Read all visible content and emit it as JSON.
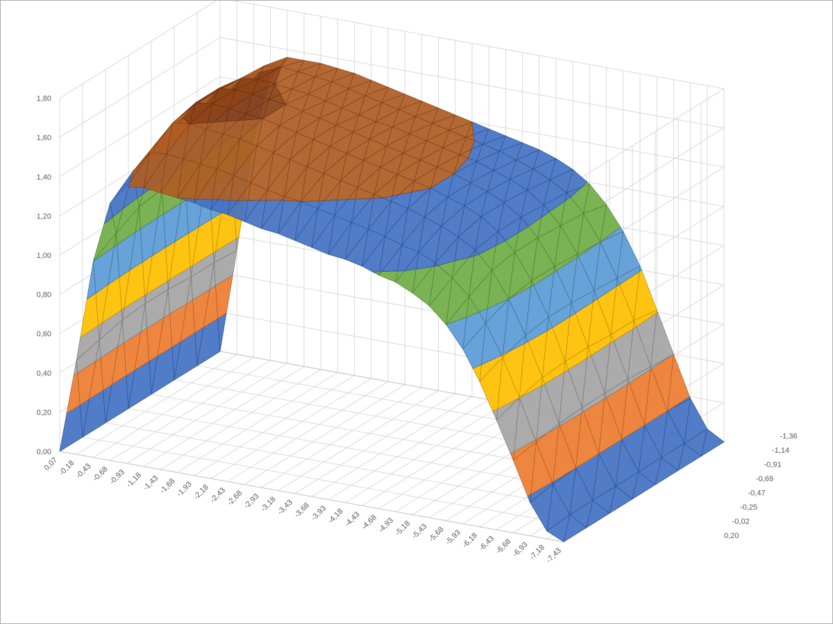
{
  "frame": {
    "background": "#FFFFFF",
    "border_color": "#ABABAB"
  },
  "axes": {
    "text_color": "#595959",
    "grid_color": "#D9D9D9",
    "edge_color": "#C6C6C6"
  },
  "chart_data": {
    "type": "surface",
    "title": "",
    "legend": "none",
    "locale_decimal_separator": ",",
    "z_axis": {
      "min": 0.0,
      "max": 1.8,
      "tick_step": 0.2,
      "tick_labels": [
        "0,00",
        "0,20",
        "0,40",
        "0,60",
        "0,80",
        "1,00",
        "1,20",
        "1,40",
        "1,60",
        "1,80"
      ]
    },
    "x_axis": {
      "start": 0.07,
      "step": -0.25,
      "tick_labels": [
        "0,07",
        "-0,18",
        "-0,43",
        "-0,68",
        "-0,93",
        "-1,18",
        "-1,43",
        "-1,68",
        "-1,93",
        "-2,18",
        "-2,43",
        "-2,68",
        "-2,93",
        "-3,18",
        "-3,43",
        "-3,68",
        "-3,93",
        "-4,18",
        "-4,43",
        "-4,68",
        "-4,93",
        "-5,18",
        "-5,43",
        "-5,68",
        "-5,93",
        "-6,18",
        "-6,43",
        "-6,68",
        "-6,93",
        "-7,18",
        "-7,43"
      ]
    },
    "y_axis": {
      "start": 0.2,
      "step": -0.2229,
      "tick_labels": [
        "0,20",
        "-0,02",
        "-0,25",
        "-0,47",
        "-0,69",
        "-0,91",
        "-1,14",
        "-1,36"
      ]
    },
    "bands": [
      {
        "range": "0,00-0,20",
        "color": "#4472C4"
      },
      {
        "range": "0,20-0,40",
        "color": "#ED7D31"
      },
      {
        "range": "0,40-0,60",
        "color": "#A5A5A5"
      },
      {
        "range": "0,60-0,80",
        "color": "#FFC000"
      },
      {
        "range": "0,80-1,00",
        "color": "#5B9BD5"
      },
      {
        "range": "1,00-1,20",
        "color": "#70AD47"
      },
      {
        "range": "1,20-1,40",
        "color": "#4472C4"
      },
      {
        "range": "1,40-1,60",
        "color": "#AE5D24"
      },
      {
        "range": "1,60-1,80",
        "color": "#8C4117"
      }
    ],
    "z_values_rows_front_to_back": [
      [
        0,
        0.48,
        1,
        1.31,
        1.41,
        1.42,
        1.41,
        1.4,
        1.39,
        1.37,
        1.36,
        1.34,
        1.32,
        1.31,
        1.29,
        1.27,
        1.25,
        1.24,
        1.22,
        1.19,
        1.17,
        1.13,
        1.08,
        1,
        0.89,
        0.74,
        0.56,
        0.37,
        0.17,
        0.04,
        0
      ],
      [
        0,
        0.51,
        1.07,
        1.4,
        1.51,
        1.52,
        1.51,
        1.5,
        1.49,
        1.47,
        1.45,
        1.43,
        1.41,
        1.4,
        1.38,
        1.36,
        1.34,
        1.32,
        1.3,
        1.27,
        1.25,
        1.21,
        1.15,
        1.07,
        0.95,
        0.79,
        0.6,
        0.39,
        0.19,
        0.05,
        0
      ],
      [
        0,
        0.54,
        1.13,
        1.47,
        1.59,
        1.6,
        1.59,
        1.58,
        1.57,
        1.55,
        1.53,
        1.51,
        1.49,
        1.47,
        1.45,
        1.43,
        1.41,
        1.39,
        1.37,
        1.34,
        1.31,
        1.27,
        1.22,
        1.13,
        1,
        0.83,
        0.63,
        0.41,
        0.2,
        0.05,
        0
      ],
      [
        0,
        0.55,
        1.15,
        1.5,
        1.62,
        1.63,
        1.62,
        1.61,
        1.6,
        1.58,
        1.56,
        1.54,
        1.52,
        1.5,
        1.48,
        1.46,
        1.44,
        1.42,
        1.4,
        1.37,
        1.34,
        1.3,
        1.24,
        1.15,
        1.02,
        0.85,
        0.64,
        0.42,
        0.2,
        0.05,
        0
      ],
      [
        0,
        0.55,
        1.15,
        1.5,
        1.62,
        1.63,
        1.62,
        1.61,
        1.6,
        1.58,
        1.56,
        1.54,
        1.52,
        1.5,
        1.48,
        1.46,
        1.44,
        1.42,
        1.4,
        1.37,
        1.34,
        1.3,
        1.24,
        1.15,
        1.02,
        0.85,
        0.64,
        0.42,
        0.2,
        0.05,
        0
      ],
      [
        0,
        0.54,
        1.14,
        1.49,
        1.6,
        1.61,
        1.6,
        1.59,
        1.58,
        1.56,
        1.54,
        1.52,
        1.5,
        1.49,
        1.47,
        1.45,
        1.43,
        1.41,
        1.39,
        1.36,
        1.33,
        1.29,
        1.23,
        1.14,
        1.01,
        0.84,
        0.63,
        0.42,
        0.2,
        0.05,
        0
      ],
      [
        0,
        0.54,
        1.13,
        1.47,
        1.59,
        1.6,
        1.59,
        1.58,
        1.57,
        1.55,
        1.53,
        1.51,
        1.49,
        1.47,
        1.45,
        1.43,
        1.41,
        1.39,
        1.37,
        1.34,
        1.31,
        1.27,
        1.22,
        1.13,
        1,
        0.83,
        0.63,
        0.41,
        0.2,
        0.05,
        0
      ],
      [
        0,
        0.53,
        1.1,
        1.44,
        1.56,
        1.56,
        1.56,
        1.55,
        1.54,
        1.52,
        1.5,
        1.48,
        1.46,
        1.44,
        1.42,
        1.4,
        1.38,
        1.36,
        1.34,
        1.32,
        1.29,
        1.25,
        1.19,
        1.1,
        0.98,
        0.82,
        0.61,
        0.4,
        0.19,
        0.05,
        0
      ]
    ]
  }
}
